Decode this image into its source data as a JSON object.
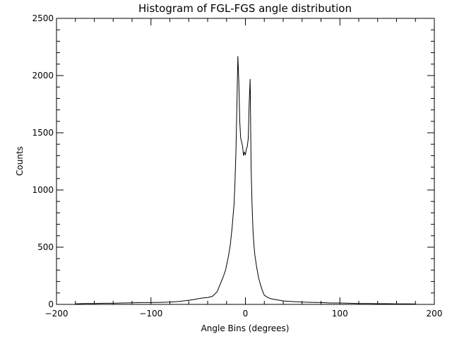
{
  "chart_data": {
    "type": "line",
    "title": "Histogram of FGL-FGS angle distribution",
    "xlabel": "Angle Bins (degrees)",
    "ylabel": "Counts",
    "xlim": [
      -200,
      200
    ],
    "ylim": [
      0,
      2500
    ],
    "x_ticks": [
      -200,
      -100,
      0,
      100,
      200
    ],
    "y_ticks": [
      0,
      500,
      1000,
      1500,
      2000,
      2500
    ],
    "x_tick_labels": [
      "−200",
      "−100",
      "0",
      "100",
      "200"
    ],
    "y_tick_labels": [
      "0",
      "500",
      "1000",
      "1500",
      "2000",
      "2500"
    ],
    "grid": false,
    "legend": "none",
    "line_color": "#000000",
    "series": [
      {
        "x": [
          -180,
          -170,
          -160,
          -150,
          -140,
          -130,
          -120,
          -110,
          -100,
          -90,
          -80,
          -70,
          -60,
          -55,
          -50,
          -45,
          -40,
          -35,
          -30,
          -27,
          -24,
          -21,
          -18,
          -16,
          -14,
          -12,
          -11,
          -10,
          -9,
          -8,
          -7,
          -6,
          -5,
          -4,
          -3,
          -2,
          -1,
          0,
          1,
          2,
          3,
          4,
          5,
          6,
          7,
          8,
          9,
          10,
          12,
          14,
          16,
          18,
          20,
          24,
          28,
          32,
          36,
          40,
          50,
          60,
          70,
          80,
          90,
          100,
          110,
          120,
          130,
          140,
          150,
          160,
          170,
          180
        ],
        "y": [
          5,
          8,
          8,
          10,
          10,
          12,
          14,
          16,
          16,
          18,
          20,
          26,
          36,
          42,
          50,
          56,
          60,
          70,
          110,
          170,
          230,
          300,
          420,
          520,
          680,
          880,
          1080,
          1350,
          1750,
          2170,
          1950,
          1600,
          1450,
          1420,
          1380,
          1300,
          1330,
          1310,
          1360,
          1380,
          1450,
          1760,
          1970,
          1200,
          880,
          650,
          520,
          430,
          320,
          230,
          170,
          120,
          80,
          58,
          48,
          42,
          36,
          30,
          25,
          20,
          18,
          16,
          12,
          12,
          10,
          8,
          8,
          6,
          6,
          5,
          5,
          4
        ]
      }
    ]
  }
}
